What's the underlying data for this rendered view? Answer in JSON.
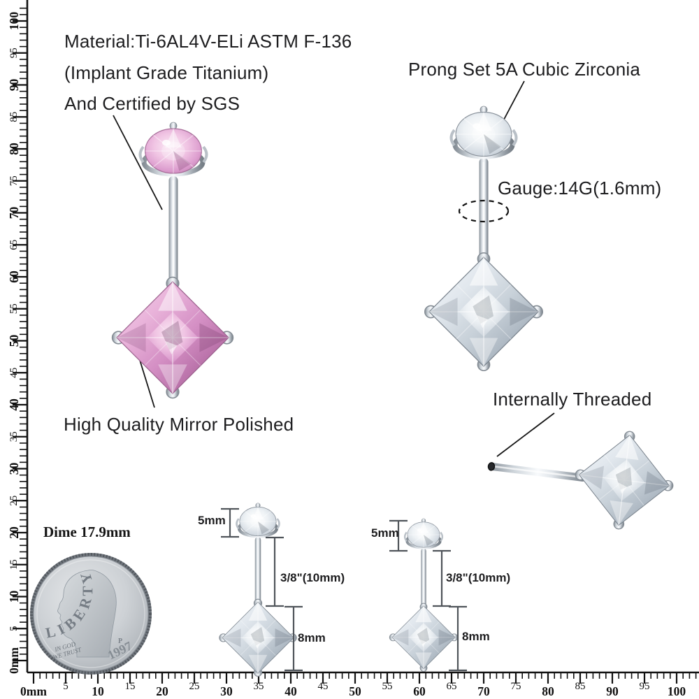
{
  "annotations": {
    "material_line1": "Material:Ti-6AL4V-ELi ASTM F-136",
    "material_line2": "(Implant Grade Titanium)",
    "material_line3": "And Certified by SGS",
    "prong_set": "Prong Set 5A Cubic Zirconia",
    "gauge": "Gauge:14G(1.6mm)",
    "mirror_polished": "High Quality Mirror Polished",
    "internally_threaded": "Internally Threaded",
    "dime_label": "Dime 17.9mm"
  },
  "measurements": {
    "top_gem_height": "5mm",
    "bar_length": "3/8\"(10mm)",
    "bottom_gem_height": "8mm"
  },
  "dime": {
    "inscriptions": {
      "liberty": "LIBERTY",
      "motto_line1": "IN GOD",
      "motto_line2": "WE TRUST",
      "year": "1997",
      "mint_mark": "P"
    }
  },
  "rulers": {
    "unit": "mm",
    "vertical": {
      "min": 0,
      "max": 100,
      "labels_top_to_bottom": [
        "100",
        "95",
        "90",
        "85",
        "80",
        "75",
        "70",
        "65",
        "60",
        "55",
        "50",
        "45",
        "40",
        "35",
        "30",
        "25",
        "20",
        "15",
        "10",
        "5",
        "0mm"
      ]
    },
    "horizontal": {
      "min": 0,
      "max": 100,
      "labels_left_to_right": [
        "0mm",
        "5",
        "10",
        "15",
        "20",
        "25",
        "30",
        "35",
        "40",
        "45",
        "50",
        "55",
        "60",
        "65",
        "70",
        "75",
        "80",
        "85",
        "90",
        "95",
        "100"
      ]
    }
  },
  "colors": {
    "background": "#ffffff",
    "text": "#1d1d1f",
    "ruler": "#111111",
    "leader_line": "#161616",
    "bracket": "#4f545a",
    "metal_light": "#f8fafc",
    "metal_dark": "#767e86",
    "gem_pink": "#d48fc4",
    "gem_clear": "#c8d1d9",
    "coin_silver": "#c9cdd1"
  }
}
